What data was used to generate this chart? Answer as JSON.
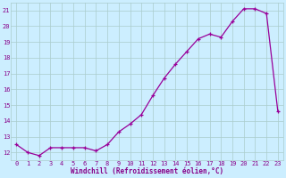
{
  "x": [
    0,
    1,
    2,
    3,
    4,
    5,
    6,
    7,
    8,
    9,
    10,
    11,
    12,
    13,
    14,
    15,
    16,
    17,
    18,
    19,
    20,
    21,
    22,
    23
  ],
  "y": [
    12.5,
    12.0,
    11.8,
    12.3,
    12.3,
    12.3,
    12.3,
    12.1,
    12.5,
    13.3,
    13.8,
    14.4,
    15.6,
    16.7,
    17.6,
    18.4,
    19.2,
    19.5,
    19.3,
    20.3,
    21.1,
    21.1,
    20.8,
    14.6
  ],
  "line_color": "#990099",
  "marker": "+",
  "bg_color": "#cceeff",
  "grid_color": "#aacccc",
  "xlabel": "Windchill (Refroidissement éolien,°C)",
  "xlim_min": -0.5,
  "xlim_max": 23.5,
  "ylim_min": 11.5,
  "ylim_max": 21.5,
  "yticks": [
    12,
    13,
    14,
    15,
    16,
    17,
    18,
    19,
    20,
    21
  ],
  "xticks": [
    0,
    1,
    2,
    3,
    4,
    5,
    6,
    7,
    8,
    9,
    10,
    11,
    12,
    13,
    14,
    15,
    16,
    17,
    18,
    19,
    20,
    21,
    22,
    23
  ],
  "font_color": "#880088",
  "tick_fontsize": 5.0,
  "xlabel_fontsize": 5.5,
  "linewidth": 0.9,
  "markersize": 3.5,
  "markeredgewidth": 0.9
}
